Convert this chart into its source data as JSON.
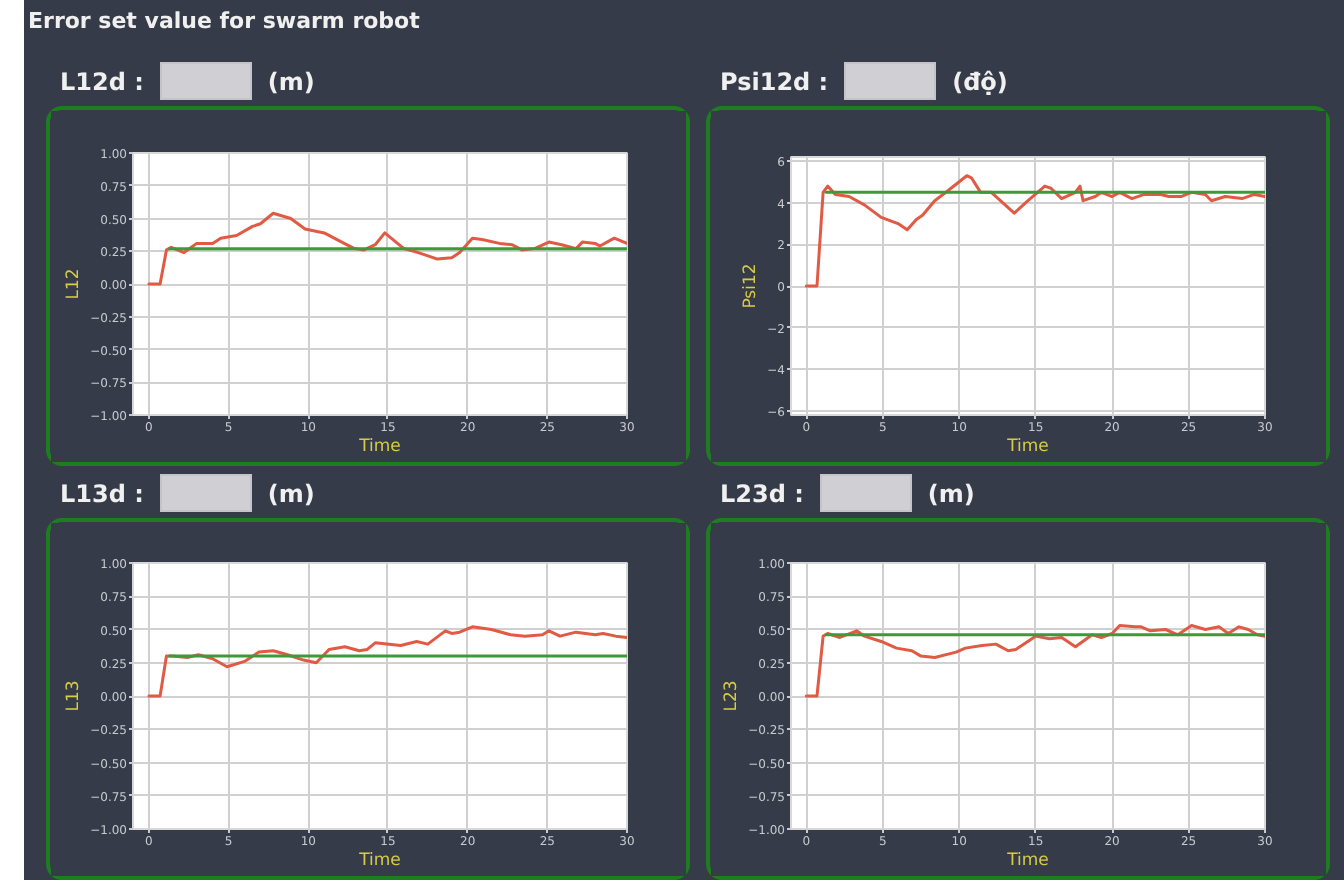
{
  "chart_data": [
    {
      "type": "line",
      "title": "L12d :",
      "subtitle": "(m)",
      "annotations": [
        "Error set value for swarm robot"
      ],
      "xlabel": "Time",
      "ylabel": "L12",
      "xlim": [
        -1,
        30
      ],
      "ylim": [
        -1,
        1
      ],
      "xticks": [
        0,
        5,
        10,
        15,
        20,
        25,
        30
      ],
      "yticks": [
        {
          "value": -1,
          "label": "−1.00"
        },
        {
          "value": -0.75,
          "label": "−0.75"
        },
        {
          "value": -0.5,
          "label": "−0.50"
        },
        {
          "value": -0.25,
          "label": "−0.25"
        },
        {
          "value": 0,
          "label": "0.00"
        },
        {
          "value": 0.25,
          "label": "0.25"
        },
        {
          "value": 0.5,
          "label": "0.50"
        },
        {
          "value": 0.75,
          "label": "0.75"
        },
        {
          "value": 1,
          "label": "1.00"
        }
      ],
      "grid": true,
      "series": [
        {
          "color": "#e05a44",
          "x": [
            0,
            0.7,
            1.1,
            1.4,
            2.2,
            3,
            4,
            4.5,
            5.5,
            6.5,
            7,
            7.8,
            8.9,
            9.8,
            11,
            12.1,
            12.9,
            13.5,
            14.2,
            14.8,
            16,
            16.9,
            18.1,
            19,
            19.5,
            20.3,
            20.9,
            22,
            22.8,
            23.4,
            24.2,
            25.1,
            25.9,
            26.8,
            27.2,
            28,
            28.3,
            29.2,
            30
          ],
          "values": [
            0,
            0,
            0.26,
            0.28,
            0.24,
            0.31,
            0.31,
            0.35,
            0.37,
            0.44,
            0.46,
            0.54,
            0.5,
            0.42,
            0.39,
            0.32,
            0.27,
            0.26,
            0.3,
            0.39,
            0.27,
            0.24,
            0.19,
            0.2,
            0.24,
            0.35,
            0.34,
            0.31,
            0.3,
            0.26,
            0.27,
            0.32,
            0.3,
            0.27,
            0.32,
            0.31,
            0.29,
            0.35,
            0.31
          ]
        },
        {
          "color": "#3c9a3c",
          "x": [
            1.3,
            30
          ],
          "values": [
            0.27,
            0.27
          ]
        }
      ]
    },
    {
      "type": "line",
      "title": "Psi12d :",
      "subtitle": "(độ)",
      "xlabel": "Time",
      "ylabel": "Psi12",
      "xlim": [
        -1,
        30
      ],
      "ylim": [
        -6.2,
        6.2
      ],
      "xticks": [
        0,
        5,
        10,
        15,
        20,
        25,
        30
      ],
      "yticks": [
        {
          "value": -6,
          "label": "−6"
        },
        {
          "value": -4,
          "label": "−4"
        },
        {
          "value": -2,
          "label": "−2"
        },
        0,
        2,
        4,
        6
      ],
      "grid": true,
      "series": [
        {
          "color": "#e05a44",
          "x": [
            0,
            0.7,
            1.1,
            1.4,
            1.9,
            2.8,
            3.8,
            4.9,
            6,
            6.6,
            7.2,
            7.6,
            8.4,
            9.3,
            10.5,
            10.8,
            11.4,
            12.1,
            13.6,
            14.5,
            15.6,
            16,
            16.7,
            17.6,
            17.9,
            18.1,
            18.9,
            19.3,
            20,
            20.5,
            21.3,
            22.1,
            23.2,
            23.7,
            24.5,
            25.2,
            26.1,
            26.5,
            27.4,
            28.5,
            29.3,
            30
          ],
          "values": [
            0,
            0,
            4.5,
            4.8,
            4.4,
            4.3,
            3.9,
            3.3,
            3.0,
            2.7,
            3.2,
            3.4,
            4.1,
            4.6,
            5.3,
            5.2,
            4.5,
            4.5,
            3.5,
            4.1,
            4.8,
            4.7,
            4.2,
            4.5,
            4.8,
            4.1,
            4.3,
            4.5,
            4.3,
            4.5,
            4.2,
            4.4,
            4.4,
            4.3,
            4.3,
            4.5,
            4.4,
            4.1,
            4.3,
            4.2,
            4.4,
            4.3
          ]
        },
        {
          "color": "#3c9a3c",
          "x": [
            1.3,
            30
          ],
          "values": [
            4.5,
            4.5
          ]
        }
      ]
    },
    {
      "type": "line",
      "title": "L13d :",
      "subtitle": "(m)",
      "xlabel": "Time",
      "ylabel": "L13",
      "xlim": [
        -1,
        30
      ],
      "ylim": [
        -1,
        1
      ],
      "xticks": [
        0,
        5,
        10,
        15,
        20,
        25,
        30
      ],
      "yticks": [
        {
          "value": -1,
          "label": "−1.00"
        },
        {
          "value": -0.75,
          "label": "−0.75"
        },
        {
          "value": -0.5,
          "label": "−0.50"
        },
        {
          "value": -0.25,
          "label": "−0.25"
        },
        {
          "value": 0,
          "label": "0.00"
        },
        {
          "value": 0.25,
          "label": "0.25"
        },
        {
          "value": 0.5,
          "label": "0.50"
        },
        {
          "value": 0.75,
          "label": "0.75"
        },
        {
          "value": 1,
          "label": "1.00"
        }
      ],
      "grid": true,
      "series": [
        {
          "color": "#e05a44",
          "x": [
            0,
            0.7,
            1.1,
            1.5,
            2.4,
            3.1,
            4,
            4.9,
            6,
            6.9,
            7.8,
            8.7,
            9.7,
            10.5,
            11.3,
            12.3,
            13.2,
            13.7,
            14.2,
            15.8,
            16.8,
            17.5,
            18.6,
            19,
            19.5,
            20.3,
            21.5,
            22.7,
            23.6,
            24.7,
            25.1,
            25.8,
            26.8,
            28,
            28.5,
            29.3,
            30
          ],
          "values": [
            0,
            0,
            0.3,
            0.3,
            0.29,
            0.31,
            0.28,
            0.22,
            0.26,
            0.33,
            0.34,
            0.31,
            0.27,
            0.25,
            0.35,
            0.37,
            0.34,
            0.35,
            0.4,
            0.38,
            0.41,
            0.39,
            0.49,
            0.47,
            0.48,
            0.52,
            0.5,
            0.46,
            0.45,
            0.46,
            0.49,
            0.45,
            0.48,
            0.46,
            0.47,
            0.45,
            0.44
          ]
        },
        {
          "color": "#3c9a3c",
          "x": [
            1.3,
            30
          ],
          "values": [
            0.3,
            0.3
          ]
        }
      ]
    },
    {
      "type": "line",
      "title": "L23d :",
      "subtitle": "(m)",
      "xlabel": "Time",
      "ylabel": "L23",
      "xlim": [
        -1,
        30
      ],
      "ylim": [
        -1,
        1
      ],
      "xticks": [
        0,
        5,
        10,
        15,
        20,
        25,
        30
      ],
      "yticks": [
        {
          "value": -1,
          "label": "−1.00"
        },
        {
          "value": -0.75,
          "label": "−0.75"
        },
        {
          "value": -0.5,
          "label": "−0.50"
        },
        {
          "value": -0.25,
          "label": "−0.25"
        },
        {
          "value": 0,
          "label": "0.00"
        },
        {
          "value": 0.25,
          "label": "0.25"
        },
        {
          "value": 0.5,
          "label": "0.50"
        },
        {
          "value": 0.75,
          "label": "0.75"
        },
        {
          "value": 1,
          "label": "1.00"
        }
      ],
      "grid": true,
      "series": [
        {
          "color": "#e05a44",
          "x": [
            0,
            0.7,
            1.1,
            1.4,
            2.2,
            3.3,
            3.8,
            4.9,
            5.9,
            6.9,
            7.5,
            8.4,
            9.8,
            10.4,
            11.5,
            12.4,
            13.2,
            13.7,
            15,
            15.9,
            16.7,
            17.6,
            18.7,
            19.3,
            20,
            20.5,
            21.5,
            21.9,
            22.5,
            23.5,
            24.3,
            25.2,
            26.1,
            27,
            27.6,
            28.3,
            28.9,
            29.5,
            30
          ],
          "values": [
            0,
            0,
            0.45,
            0.47,
            0.44,
            0.49,
            0.45,
            0.41,
            0.36,
            0.34,
            0.3,
            0.29,
            0.33,
            0.36,
            0.38,
            0.39,
            0.34,
            0.35,
            0.45,
            0.43,
            0.44,
            0.37,
            0.46,
            0.44,
            0.47,
            0.53,
            0.52,
            0.52,
            0.49,
            0.5,
            0.46,
            0.53,
            0.5,
            0.52,
            0.47,
            0.52,
            0.5,
            0.46,
            0.45
          ]
        },
        {
          "color": "#3c9a3c",
          "x": [
            1.3,
            30
          ],
          "values": [
            0.46,
            0.46
          ]
        }
      ]
    }
  ]
}
